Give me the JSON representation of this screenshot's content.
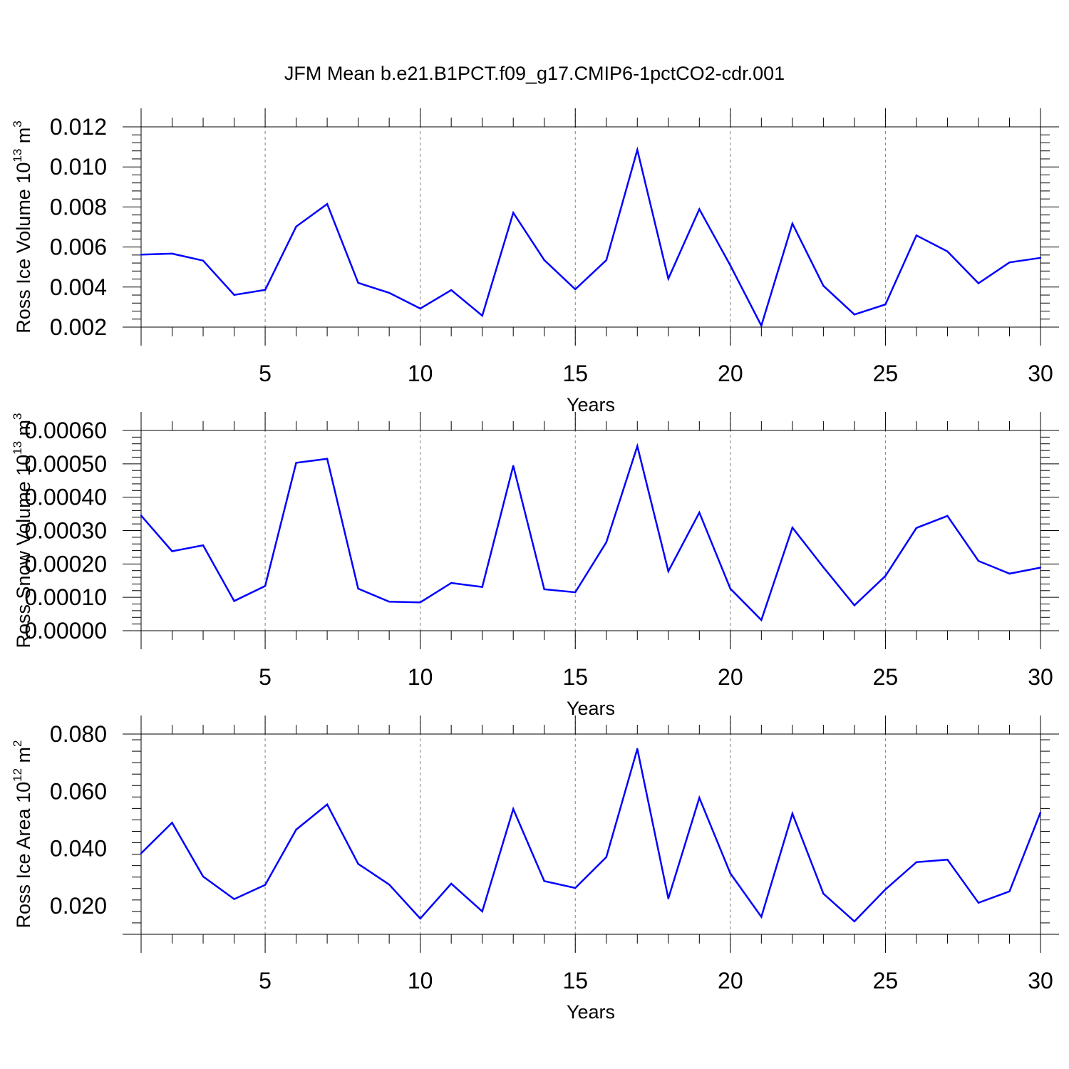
{
  "title": "JFM Mean b.e21.B1PCT.f09_g17.CMIP6-1pctCO2-cdr.001",
  "colors": {
    "series": "#0000ff",
    "axis": "#000000",
    "grid": "#7f7f7f"
  },
  "chart_data": [
    {
      "type": "line",
      "xlabel": "Years",
      "ylabel_text": "Ross Ice Volume 10",
      "ylabel_exp1": "13",
      "ylabel_unit": " m",
      "ylabel_exp2": "3",
      "xlim": [
        1,
        30
      ],
      "ylim": [
        0.002,
        0.012
      ],
      "yticks": [
        "0.002",
        "0.004",
        "0.006",
        "0.008",
        "0.010",
        "0.012"
      ],
      "xticks": [
        "5",
        "10",
        "15",
        "20",
        "25",
        "30"
      ],
      "grid": "vertical dashed at major x ticks",
      "x": [
        1,
        2,
        3,
        4,
        5,
        6,
        7,
        8,
        9,
        10,
        11,
        12,
        13,
        14,
        15,
        16,
        17,
        18,
        19,
        20,
        21,
        22,
        23,
        24,
        25,
        26,
        27,
        28,
        29,
        30
      ],
      "values": [
        0.00562,
        0.00567,
        0.00532,
        0.00361,
        0.00386,
        0.00702,
        0.00815,
        0.00421,
        0.00371,
        0.00293,
        0.00385,
        0.00257,
        0.00771,
        0.00535,
        0.00389,
        0.00534,
        0.01085,
        0.00442,
        0.00789,
        0.00508,
        0.00207,
        0.00717,
        0.00406,
        0.00263,
        0.00313,
        0.00658,
        0.00578,
        0.00419,
        0.00523,
        0.00546
      ]
    },
    {
      "type": "line",
      "xlabel": "Years",
      "ylabel_text": "Ross Snow Volume 10",
      "ylabel_exp1": "13",
      "ylabel_unit": " m",
      "ylabel_exp2": "3",
      "xlim": [
        1,
        30
      ],
      "ylim": [
        0.0,
        0.0006
      ],
      "yticks": [
        "0.00000",
        "0.00010",
        "0.00020",
        "0.00030",
        "0.00040",
        "0.00050",
        "0.00060"
      ],
      "xticks": [
        "5",
        "10",
        "15",
        "20",
        "25",
        "30"
      ],
      "grid": "vertical dashed at major x ticks",
      "x": [
        1,
        2,
        3,
        4,
        5,
        6,
        7,
        8,
        9,
        10,
        11,
        12,
        13,
        14,
        15,
        16,
        17,
        18,
        19,
        20,
        21,
        22,
        23,
        24,
        25,
        26,
        27,
        28,
        29,
        30
      ],
      "values": [
        0.000345,
        0.000238,
        0.000256,
        8.9e-05,
        0.000134,
        0.000503,
        0.000515,
        0.000126,
        8.7e-05,
        8.5e-05,
        0.000143,
        0.000131,
        0.000494,
        0.000124,
        0.000115,
        0.000265,
        0.000553,
        0.000178,
        0.000354,
        0.000126,
        3.2e-05,
        0.000309,
        0.00019,
        7.6e-05,
        0.000164,
        0.000308,
        0.000344,
        0.000209,
        0.000171,
        0.000189
      ]
    },
    {
      "type": "line",
      "xlabel": "Years",
      "ylabel_text": "Ross Ice Area 10",
      "ylabel_exp1": "12",
      "ylabel_unit": " m",
      "ylabel_exp2": "2",
      "xlim": [
        1,
        30
      ],
      "ylim": [
        0.01,
        0.08
      ],
      "yticks": [
        "0.020",
        "0.040",
        "0.060",
        "0.080"
      ],
      "xticks": [
        "5",
        "10",
        "15",
        "20",
        "25",
        "30"
      ],
      "grid": "vertical dashed at major x ticks",
      "x": [
        1,
        2,
        3,
        4,
        5,
        6,
        7,
        8,
        9,
        10,
        11,
        12,
        13,
        14,
        15,
        16,
        17,
        18,
        19,
        20,
        21,
        22,
        23,
        24,
        25,
        26,
        27,
        28,
        29,
        30
      ],
      "values": [
        0.0383,
        0.049,
        0.0302,
        0.0223,
        0.0273,
        0.0466,
        0.0554,
        0.0346,
        0.0274,
        0.0155,
        0.0277,
        0.018,
        0.0538,
        0.0286,
        0.0262,
        0.037,
        0.0748,
        0.0225,
        0.0577,
        0.0313,
        0.0161,
        0.0522,
        0.0242,
        0.0145,
        0.0257,
        0.0352,
        0.0361,
        0.021,
        0.025,
        0.0526
      ]
    }
  ]
}
